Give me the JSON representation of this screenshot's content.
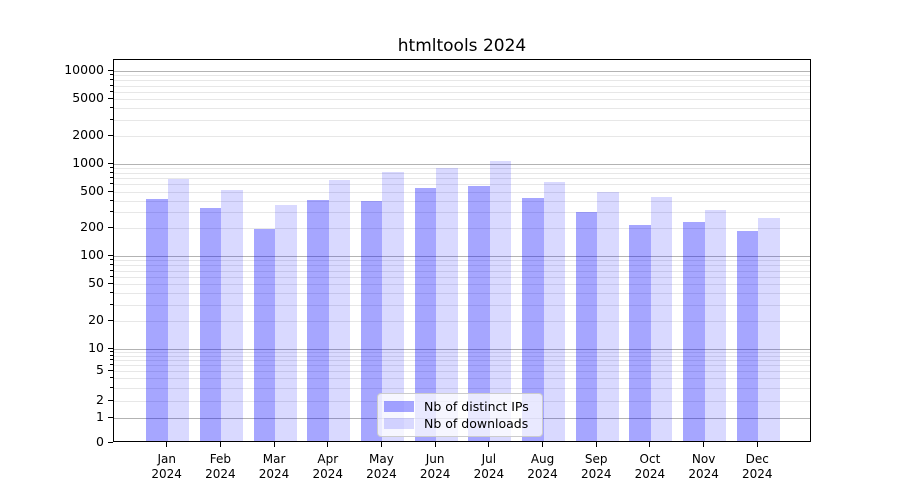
{
  "title": "htmltools 2024",
  "legend": {
    "items": [
      {
        "label": "Nb of distinct IPs",
        "color": "rgba(0,0,255,0.35)"
      },
      {
        "label": "Nb of downloads",
        "color": "rgba(0,0,255,0.15)"
      }
    ]
  },
  "chart_data": {
    "type": "bar",
    "title": "htmltools 2024",
    "categories": [
      "Jan",
      "Feb",
      "Mar",
      "Apr",
      "May",
      "Jun",
      "Jul",
      "Aug",
      "Sep",
      "Oct",
      "Nov",
      "Dec"
    ],
    "year": "2024",
    "series": [
      {
        "name": "Nb of distinct IPs",
        "color": "rgba(0,0,255,0.35)",
        "values": [
          420,
          330,
          197,
          405,
          400,
          545,
          580,
          425,
          300,
          220,
          235,
          185
        ]
      },
      {
        "name": "Nb of downloads",
        "color": "rgba(0,0,255,0.15)",
        "values": [
          685,
          515,
          360,
          660,
          810,
          890,
          1060,
          640,
          500,
          440,
          315,
          260
        ]
      }
    ],
    "y_ticks": [
      0,
      1,
      2,
      5,
      10,
      20,
      50,
      100,
      200,
      500,
      1000,
      2000,
      5000,
      10000
    ],
    "yscale": "symlog",
    "ylim": [
      0,
      15000
    ],
    "xlabel": "",
    "ylabel": "",
    "grid": "both",
    "legend_position": "lower center"
  },
  "colors": {
    "bar_distinct_ips_rendered": "#a6a6ff",
    "bar_downloads_rendered": "#d9d9ff",
    "grid_major": "#b3b3b3",
    "grid_minor": "#e7e7e7",
    "axis": "#000000",
    "legend_border": "#cccccc"
  }
}
